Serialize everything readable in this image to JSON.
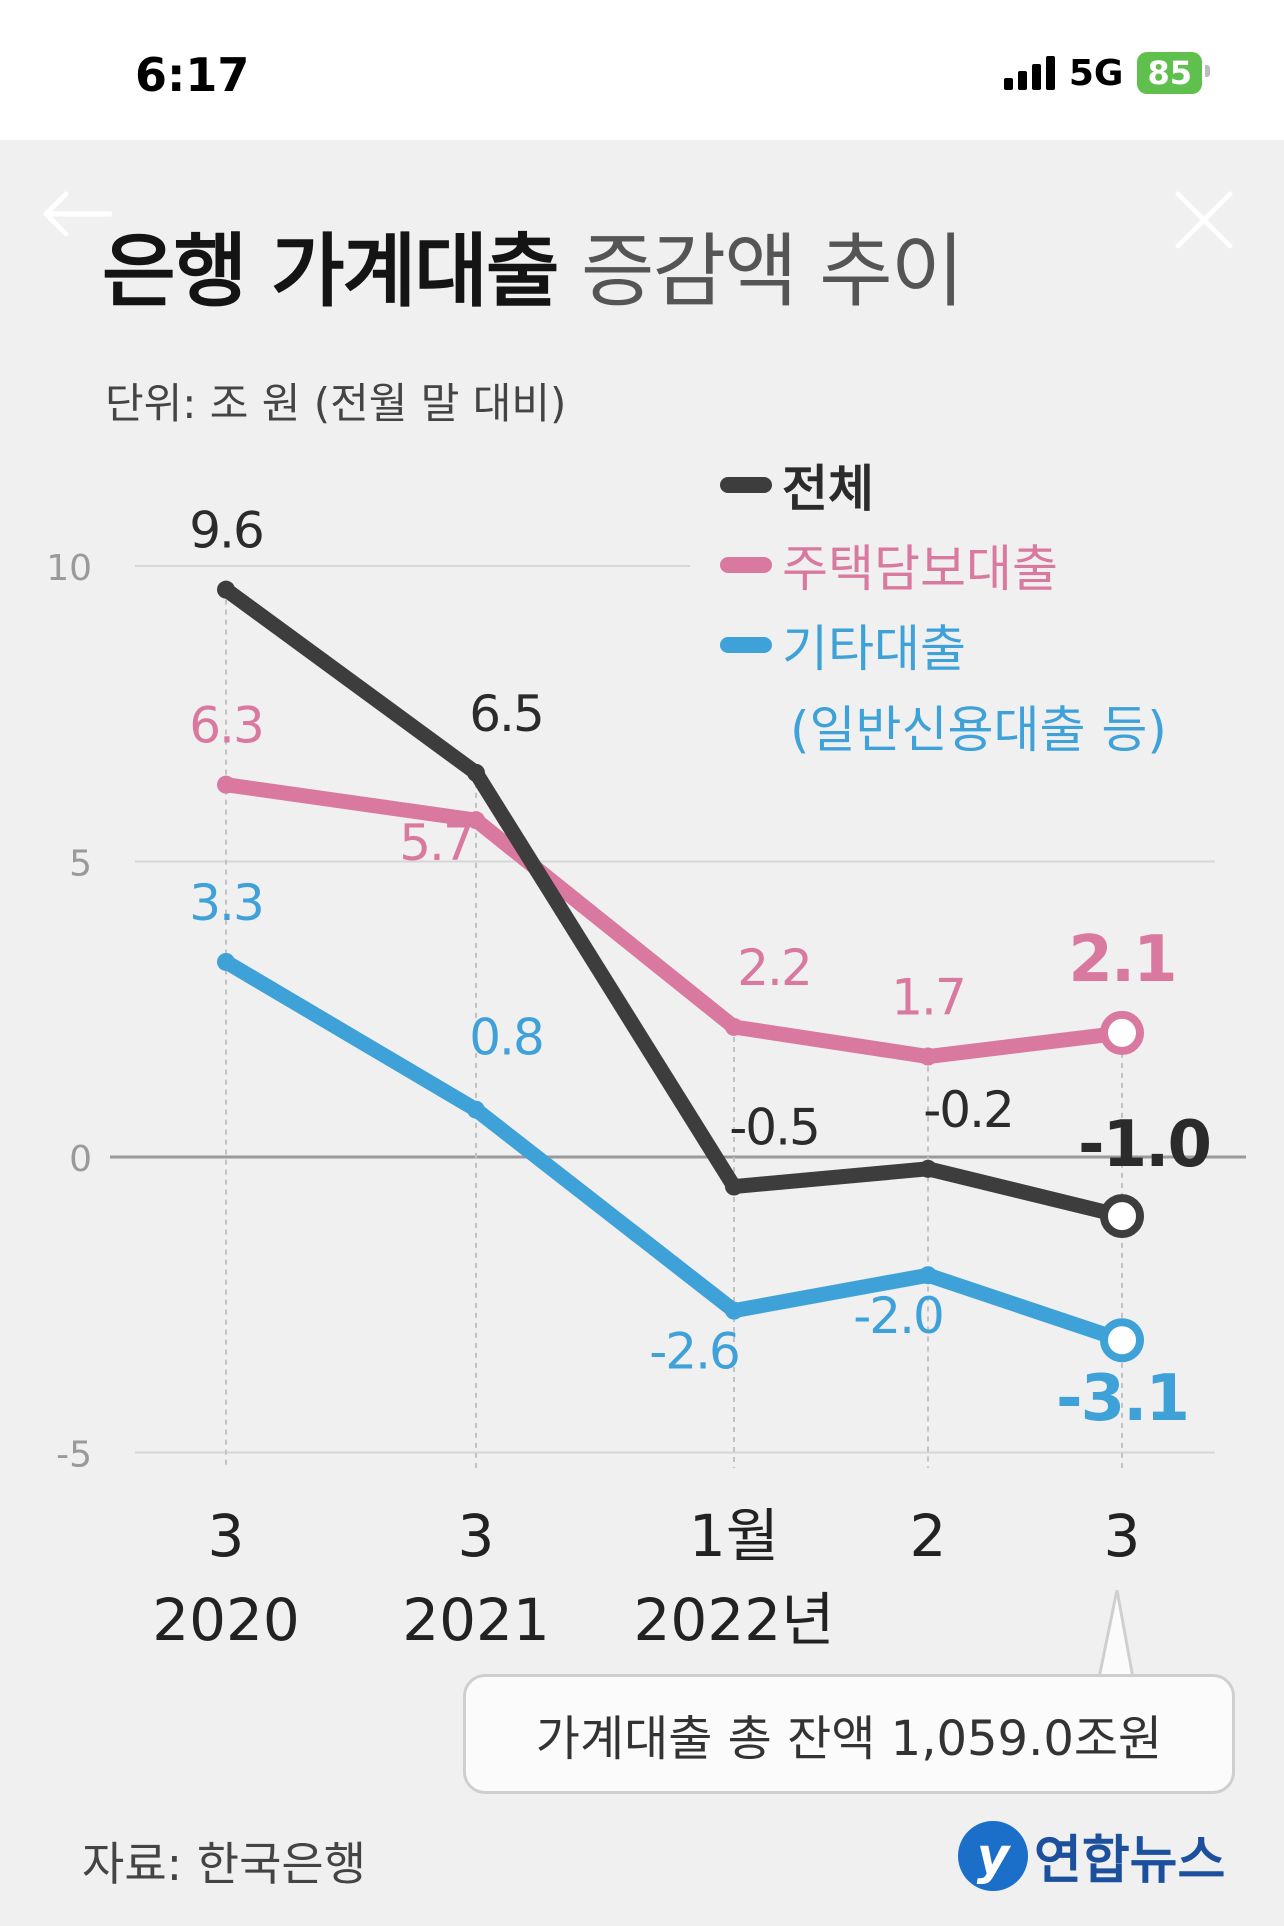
{
  "status_bar": {
    "time": "6:17",
    "network": "5G",
    "battery": "85"
  },
  "icons": {
    "back": "back-arrow-icon",
    "close": "close-icon"
  },
  "chart_data": {
    "type": "line",
    "title_bold": "은행 가계대출",
    "title_light": "증감액 추이",
    "unit_label": "단위: 조 원 (전월 말 대비)",
    "x_labels": [
      {
        "top": "3",
        "bottom": "2020"
      },
      {
        "top": "3",
        "bottom": "2021"
      },
      {
        "top": "1월",
        "bottom": "2022년"
      },
      {
        "top": "2",
        "bottom": ""
      },
      {
        "top": "3",
        "bottom": ""
      }
    ],
    "y_ticks": [
      10,
      5,
      0,
      -5
    ],
    "ylim": [
      -5,
      10
    ],
    "grid": true,
    "legend_placement": "top-right",
    "series": [
      {
        "name": "전체",
        "color": "#3d3d3d",
        "values": [
          9.6,
          6.5,
          -0.5,
          -0.2,
          -1.0
        ],
        "labels": [
          "9.6",
          "6.5",
          "-0.5",
          "-0.2",
          "-1.0"
        ]
      },
      {
        "name": "주택담보대출",
        "color": "#d9799f",
        "values": [
          6.3,
          5.7,
          2.2,
          1.7,
          2.1
        ],
        "labels": [
          "6.3",
          "5.7",
          "2.2",
          "1.7",
          "2.1"
        ]
      },
      {
        "name": "기타대출",
        "sub_name": "(일반신용대출 등)",
        "color": "#3ea2d8",
        "values": [
          3.3,
          0.8,
          -2.6,
          -2.0,
          -3.1
        ],
        "labels": [
          "3.3",
          "0.8",
          "-2.6",
          "-2.0",
          "-3.1"
        ]
      }
    ],
    "annotation": "가계대출 총 잔액 1,059.0조원",
    "source": "자료: 한국은행"
  },
  "logo": {
    "mark": "y",
    "text": "연합뉴스"
  }
}
